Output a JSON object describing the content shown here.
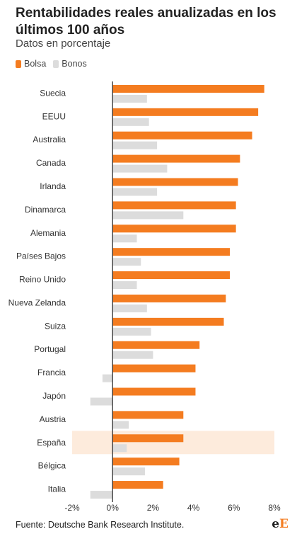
{
  "header": {
    "title": "Rentabilidades reales anualizadas en los últimos 100 años",
    "subtitle": "Datos en porcentaje"
  },
  "legend": [
    {
      "label": "Bolsa",
      "color": "#f47c20"
    },
    {
      "label": "Bonos",
      "color": "#dcdcdc"
    }
  ],
  "footer": {
    "source": "Fuente: Deutsche Bank Research Institute.",
    "logo": "eE"
  },
  "chart_data": {
    "type": "bar",
    "orientation": "horizontal",
    "categories": [
      "Suecia",
      "EEUU",
      "Australia",
      "Canada",
      "Irlanda",
      "Dinamarca",
      "Alemania",
      "Países Bajos",
      "Reino Unido",
      "Nueva Zelanda",
      "Suiza",
      "Portugal",
      "Francia",
      "Japón",
      "Austria",
      "España",
      "Bélgica",
      "Italia"
    ],
    "series": [
      {
        "name": "Bolsa",
        "color": "#f47c20",
        "values": [
          7.5,
          7.2,
          6.9,
          6.3,
          6.2,
          6.1,
          6.1,
          5.8,
          5.8,
          5.6,
          5.5,
          4.3,
          4.1,
          4.1,
          3.5,
          3.5,
          3.3,
          2.5
        ]
      },
      {
        "name": "Bonos",
        "color": "#dcdcdc",
        "values": [
          1.7,
          1.8,
          2.2,
          2.7,
          2.2,
          3.5,
          1.2,
          1.4,
          1.2,
          1.7,
          1.9,
          2.0,
          -0.5,
          -1.1,
          0.8,
          0.7,
          1.6,
          -1.1
        ]
      }
    ],
    "highlight_category": "España",
    "highlight_color": "#fdebdc",
    "xlim": [
      -2,
      8
    ],
    "xticks": [
      -2,
      0,
      2,
      4,
      6,
      8
    ],
    "xtick_labels": [
      "-2%",
      "0%",
      "2%",
      "4%",
      "6%",
      "8%"
    ],
    "grid": false,
    "legend_position": "top-left"
  }
}
